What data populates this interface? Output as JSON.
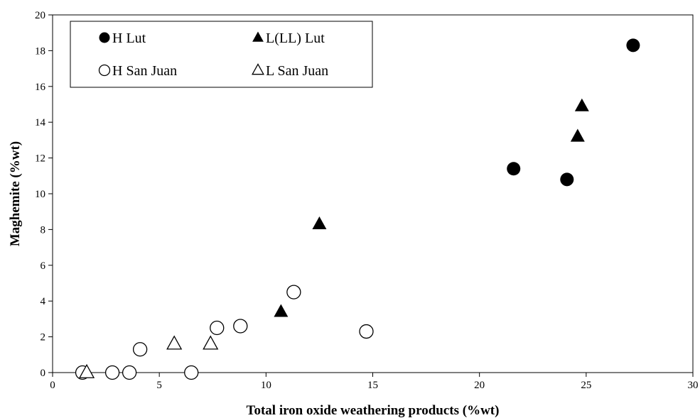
{
  "chart_data": {
    "type": "scatter",
    "title": "",
    "xlabel": "Total iron oxide weathering products (%wt)",
    "ylabel": "Maghemite (%wt)",
    "xlim": [
      0,
      30
    ],
    "ylim": [
      0,
      20
    ],
    "x_ticks": [
      0,
      5,
      10,
      15,
      20,
      25,
      30
    ],
    "y_ticks": [
      0,
      2,
      4,
      6,
      8,
      10,
      12,
      14,
      16,
      18,
      20
    ],
    "grid": false,
    "legend_position": "top-left",
    "series": [
      {
        "name": "H Lut",
        "marker": "filled-circle",
        "color": "#000000",
        "points": [
          [
            21.6,
            11.4
          ],
          [
            24.1,
            10.8
          ],
          [
            27.2,
            18.3
          ]
        ]
      },
      {
        "name": "L(LL) Lut",
        "marker": "filled-triangle",
        "color": "#000000",
        "points": [
          [
            10.7,
            3.4
          ],
          [
            12.5,
            8.3
          ],
          [
            24.6,
            13.2
          ],
          [
            24.8,
            14.9
          ]
        ]
      },
      {
        "name": "H San Juan",
        "marker": "open-circle",
        "color": "#000000",
        "points": [
          [
            1.4,
            0.0
          ],
          [
            2.8,
            0.0
          ],
          [
            3.6,
            0.0
          ],
          [
            4.1,
            1.3
          ],
          [
            6.5,
            0.0
          ],
          [
            7.7,
            2.5
          ],
          [
            8.8,
            2.6
          ],
          [
            11.3,
            4.5
          ],
          [
            14.7,
            2.3
          ]
        ]
      },
      {
        "name": "L San Juan",
        "marker": "open-triangle",
        "color": "#000000",
        "points": [
          [
            1.6,
            0.0
          ],
          [
            5.7,
            1.6
          ],
          [
            7.4,
            1.6
          ]
        ]
      }
    ]
  }
}
